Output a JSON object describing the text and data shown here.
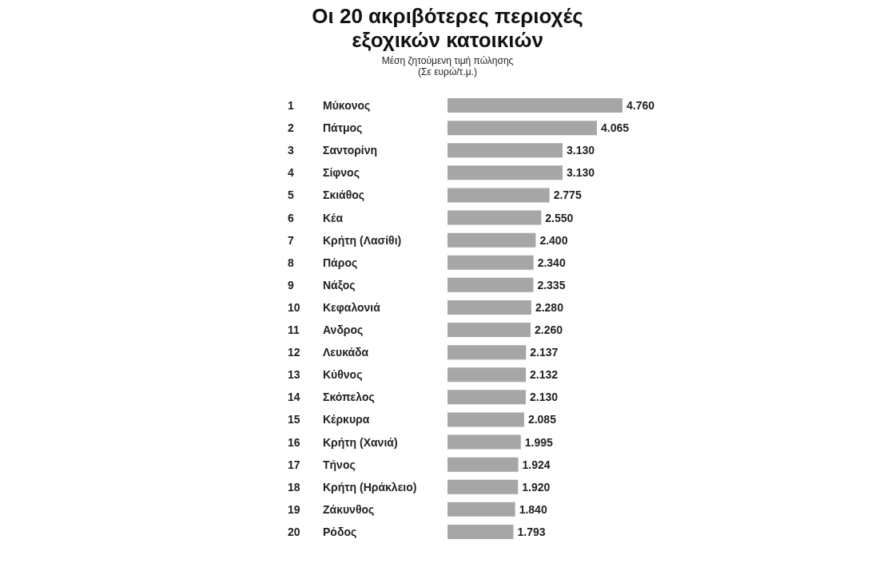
{
  "chart_data": {
    "type": "bar",
    "orientation": "horizontal",
    "title": "Οι 20 ακριβότερες περιοχές\nεξοχικών κατοικιών",
    "subtitle": "Μέση ζητούμενη τιμή πώλησης\n(Σε ευρώ/τ.μ.)",
    "categories": [
      "1 Μύκονος",
      "2 Πάτμος",
      "3 Σαντορίνη",
      "4 Σίφνος",
      "5 Σκιάθος",
      "6 Κέα",
      "7 Κρήτη (Λασίθι)",
      "8 Πάρος",
      "9 Νάξος",
      "10 Κεφαλονιά",
      "11 Ανδρος",
      "12 Λευκάδα",
      "13 Κύθνος",
      "14 Σκόπελος",
      "15 Κέρκυρα",
      "16 Κρήτη (Χανιά)",
      "17 Τήνος",
      "18 Κρήτη (Ηράκλειο)",
      "19 Ζάκυνθος",
      "20 Ρόδος"
    ],
    "values": [
      4760,
      4065,
      3130,
      3130,
      2775,
      2550,
      2400,
      2340,
      2335,
      2280,
      2260,
      2137,
      2132,
      2130,
      2085,
      1995,
      1924,
      1920,
      1840,
      1793
    ],
    "value_labels": [
      "4.760",
      "4.065",
      "3.130",
      "3.130",
      "2.775",
      "2.550",
      "2.400",
      "2.340",
      "2.335",
      "2.280",
      "2.260",
      "2.137",
      "2.132",
      "2.130",
      "2.085",
      "1.995",
      "1.924",
      "1.920",
      "1.840",
      "1.793"
    ],
    "color": "#a6a6a6"
  }
}
